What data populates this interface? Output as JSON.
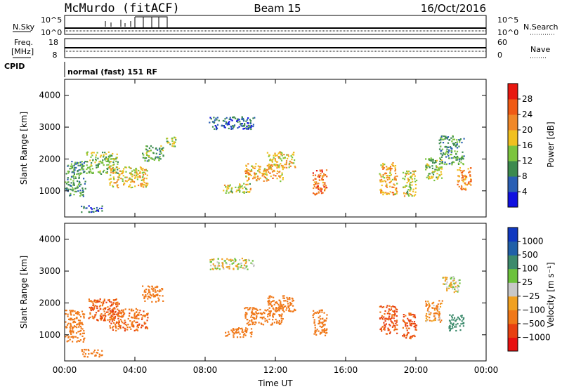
{
  "header": {
    "station": "McMurdo (fitACF)",
    "beam": "Beam 15",
    "date": "16/Oct/2016"
  },
  "aux": {
    "nsky_label": "N.Sky",
    "nsky_ticks": [
      "10^5",
      "10^0"
    ],
    "nsearch_label": "N.Search",
    "nsearch_ticks": [
      "10^5",
      "10^0"
    ],
    "freq_label": "Freq.",
    "freq_unit": "[MHz]",
    "freq_ticks": [
      "18",
      "8"
    ],
    "nave_label": "Nave",
    "nave_ticks": [
      "60",
      "0"
    ],
    "cpid_label": "CPID",
    "cpid_value": "normal (fast) 151 RF"
  },
  "chart_data": [
    {
      "type": "heatmap",
      "name": "power-panel",
      "ylabel": "Slant Range [km]",
      "xlabel": "",
      "ylim": [
        180,
        4500
      ],
      "yticks": [
        "1000",
        "2000",
        "3000",
        "4000"
      ],
      "ytick_values": [
        1000,
        2000,
        3000,
        4000
      ],
      "colorbar": {
        "label": "Power [dB]",
        "ticks": [
          "4",
          "8",
          "12",
          "16",
          "20",
          "24",
          "28"
        ],
        "tick_values": [
          4,
          8,
          12,
          16,
          20,
          24,
          28
        ],
        "range": [
          0,
          32
        ],
        "colors": [
          "#1010e0",
          "#2a5fb4",
          "#3c8a4e",
          "#7cc43e",
          "#f0c020",
          "#f08828",
          "#f05a14",
          "#e81810"
        ]
      },
      "blobs": [
        {
          "t": 0.4,
          "r": 1400,
          "dt": 1.5,
          "dr": 1100,
          "v": 10
        },
        {
          "t": 2.1,
          "r": 1900,
          "dt": 1.8,
          "dr": 700,
          "v": 14
        },
        {
          "t": 3.6,
          "r": 1450,
          "dt": 2.2,
          "dr": 650,
          "v": 18
        },
        {
          "t": 5.0,
          "r": 2200,
          "dt": 1.2,
          "dr": 500,
          "v": 12
        },
        {
          "t": 6.0,
          "r": 2550,
          "dt": 0.6,
          "dr": 350,
          "v": 14
        },
        {
          "t": 9.5,
          "r": 3150,
          "dt": 2.6,
          "dr": 400,
          "v": 7
        },
        {
          "t": 9.8,
          "r": 1100,
          "dt": 1.6,
          "dr": 300,
          "v": 16
        },
        {
          "t": 11.3,
          "r": 1600,
          "dt": 2.2,
          "dr": 550,
          "v": 20
        },
        {
          "t": 12.3,
          "r": 2000,
          "dt": 1.6,
          "dr": 500,
          "v": 18
        },
        {
          "t": 14.5,
          "r": 1300,
          "dt": 0.8,
          "dr": 800,
          "v": 24
        },
        {
          "t": 18.4,
          "r": 1400,
          "dt": 1.0,
          "dr": 1000,
          "v": 20
        },
        {
          "t": 19.6,
          "r": 1250,
          "dt": 0.8,
          "dr": 800,
          "v": 16
        },
        {
          "t": 21.0,
          "r": 1700,
          "dt": 1.0,
          "dr": 700,
          "v": 14
        },
        {
          "t": 22.0,
          "r": 2300,
          "dt": 1.4,
          "dr": 900,
          "v": 10
        },
        {
          "t": 22.7,
          "r": 1400,
          "dt": 0.8,
          "dr": 700,
          "v": 22
        },
        {
          "t": 1.5,
          "r": 450,
          "dt": 1.2,
          "dr": 200,
          "v": 6
        }
      ]
    },
    {
      "type": "heatmap",
      "name": "velocity-panel",
      "ylabel": "Slant Range [km]",
      "xlabel": "Time UT",
      "ylim": [
        180,
        4500
      ],
      "yticks": [
        "1000",
        "2000",
        "3000",
        "4000"
      ],
      "ytick_values": [
        1000,
        2000,
        3000,
        4000
      ],
      "xticks": [
        "00:00",
        "04:00",
        "08:00",
        "12:00",
        "16:00",
        "20:00",
        "00:00"
      ],
      "xtick_values": [
        0,
        4,
        8,
        12,
        16,
        20,
        24
      ],
      "xlim": [
        0,
        24
      ],
      "colorbar": {
        "label": "Velocity [m s⁻¹]",
        "ticks": [
          "1000",
          "500",
          "100",
          "25",
          "−25",
          "−100",
          "−500",
          "−1000"
        ],
        "tick_values": [
          1000,
          500,
          100,
          25,
          -25,
          -100,
          -500,
          -1000
        ],
        "colors": [
          "#1038c0",
          "#2060a8",
          "#3c8a6c",
          "#6cc23c",
          "#c8c8c8",
          "#f0a020",
          "#f07818",
          "#e84010",
          "#e81010"
        ]
      },
      "blobs": [
        {
          "t": 0.4,
          "r": 1300,
          "dt": 1.4,
          "dr": 1000,
          "v": -300
        },
        {
          "t": 2.2,
          "r": 1800,
          "dt": 1.8,
          "dr": 700,
          "v": -500
        },
        {
          "t": 3.6,
          "r": 1500,
          "dt": 2.2,
          "dr": 700,
          "v": -400
        },
        {
          "t": 5.0,
          "r": 2300,
          "dt": 1.2,
          "dr": 500,
          "v": -200
        },
        {
          "t": 9.5,
          "r": 3250,
          "dt": 2.6,
          "dr": 350,
          "v": 0
        },
        {
          "t": 9.9,
          "r": 1100,
          "dt": 1.6,
          "dr": 300,
          "v": -200
        },
        {
          "t": 11.3,
          "r": 1600,
          "dt": 2.2,
          "dr": 550,
          "v": -300
        },
        {
          "t": 12.3,
          "r": 2000,
          "dt": 1.6,
          "dr": 500,
          "v": -200
        },
        {
          "t": 14.5,
          "r": 1400,
          "dt": 0.8,
          "dr": 800,
          "v": -300
        },
        {
          "t": 18.4,
          "r": 1500,
          "dt": 1.0,
          "dr": 900,
          "v": -600
        },
        {
          "t": 19.6,
          "r": 1300,
          "dt": 0.8,
          "dr": 800,
          "v": -500
        },
        {
          "t": 21.0,
          "r": 1750,
          "dt": 1.0,
          "dr": 700,
          "v": -100
        },
        {
          "t": 22.3,
          "r": 1400,
          "dt": 0.9,
          "dr": 500,
          "v": 200
        },
        {
          "t": 22.0,
          "r": 2600,
          "dt": 1.0,
          "dr": 500,
          "v": 0
        },
        {
          "t": 1.5,
          "r": 450,
          "dt": 1.2,
          "dr": 250,
          "v": -300
        }
      ]
    }
  ]
}
